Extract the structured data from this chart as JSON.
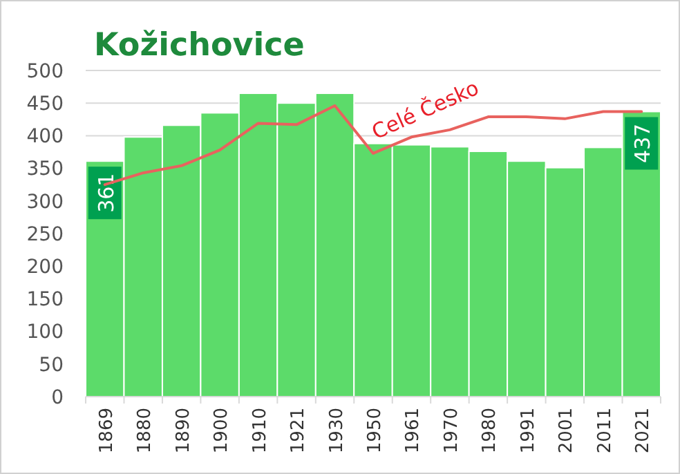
{
  "chart_data": {
    "type": "bar",
    "title": "Kožichovice",
    "categories": [
      "1869",
      "1880",
      "1890",
      "1900",
      "1910",
      "1921",
      "1930",
      "1950",
      "1961",
      "1970",
      "1980",
      "1991",
      "2001",
      "2011",
      "2021"
    ],
    "series": [
      {
        "color": "#5cdb6a",
        "values": [
          361,
          398,
          416,
          435,
          465,
          450,
          465,
          388,
          386,
          383,
          376,
          361,
          351,
          382,
          437
        ],
        "value_labels": [
          "361",
          null,
          null,
          null,
          null,
          null,
          null,
          null,
          null,
          null,
          null,
          null,
          null,
          null,
          "437"
        ]
      },
      {
        "type": "line",
        "name": "Celé Česko",
        "color": "#e8625e",
        "values": [
          325,
          343,
          354,
          378,
          419,
          417,
          446,
          373,
          398,
          409,
          429,
          429,
          426,
          437,
          437
        ]
      }
    ],
    "ylim": [
      0,
      500
    ],
    "yticks": [
      0,
      50,
      100,
      150,
      200,
      250,
      300,
      350,
      400,
      450,
      500
    ],
    "grid": "y"
  }
}
